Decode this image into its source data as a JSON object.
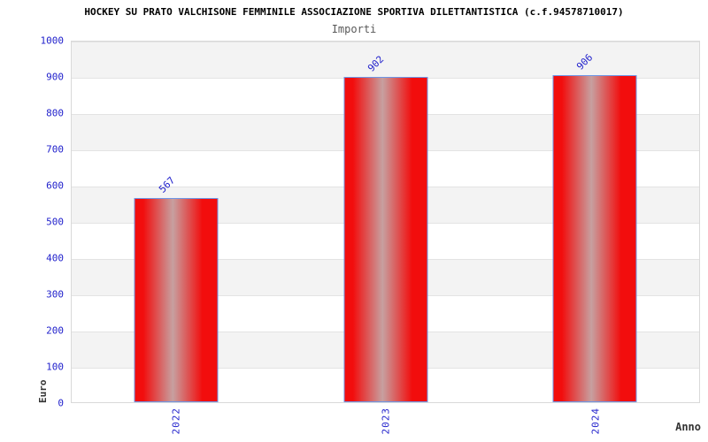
{
  "header": {
    "title": "HOCKEY SU PRATO VALCHISONE FEMMINILE ASSOCIAZIONE SPORTIVA DILETTANTISTICA (c.f.94578710017)",
    "subtitle": "Importi"
  },
  "chart_data": {
    "type": "bar",
    "title": "Importi",
    "categories": [
      "2022",
      "2023",
      "2024"
    ],
    "values": [
      567,
      902,
      906
    ],
    "xlabel": "Anno",
    "ylabel": "Euro",
    "ylim": [
      0,
      1000
    ],
    "ytick_step": 100,
    "yticks": [
      "0",
      "100",
      "200",
      "300",
      "400",
      "500",
      "600",
      "700",
      "800",
      "900",
      "1000"
    ],
    "grid": "horizontal alternating bands",
    "legend": "none",
    "colors": {
      "bar_edge_red": "#f20d0d",
      "bar_center_silver": "#c7a0a0",
      "bar_border_blue": "#6e96e6",
      "tick_label_blue": "#2222cc",
      "band_gray": "#f3f3f3",
      "band_white": "#ffffff",
      "plot_border": "#d9d9d9",
      "axis_title_color": "#333333",
      "title_color": "#000000",
      "subtitle_color": "#595959"
    }
  }
}
